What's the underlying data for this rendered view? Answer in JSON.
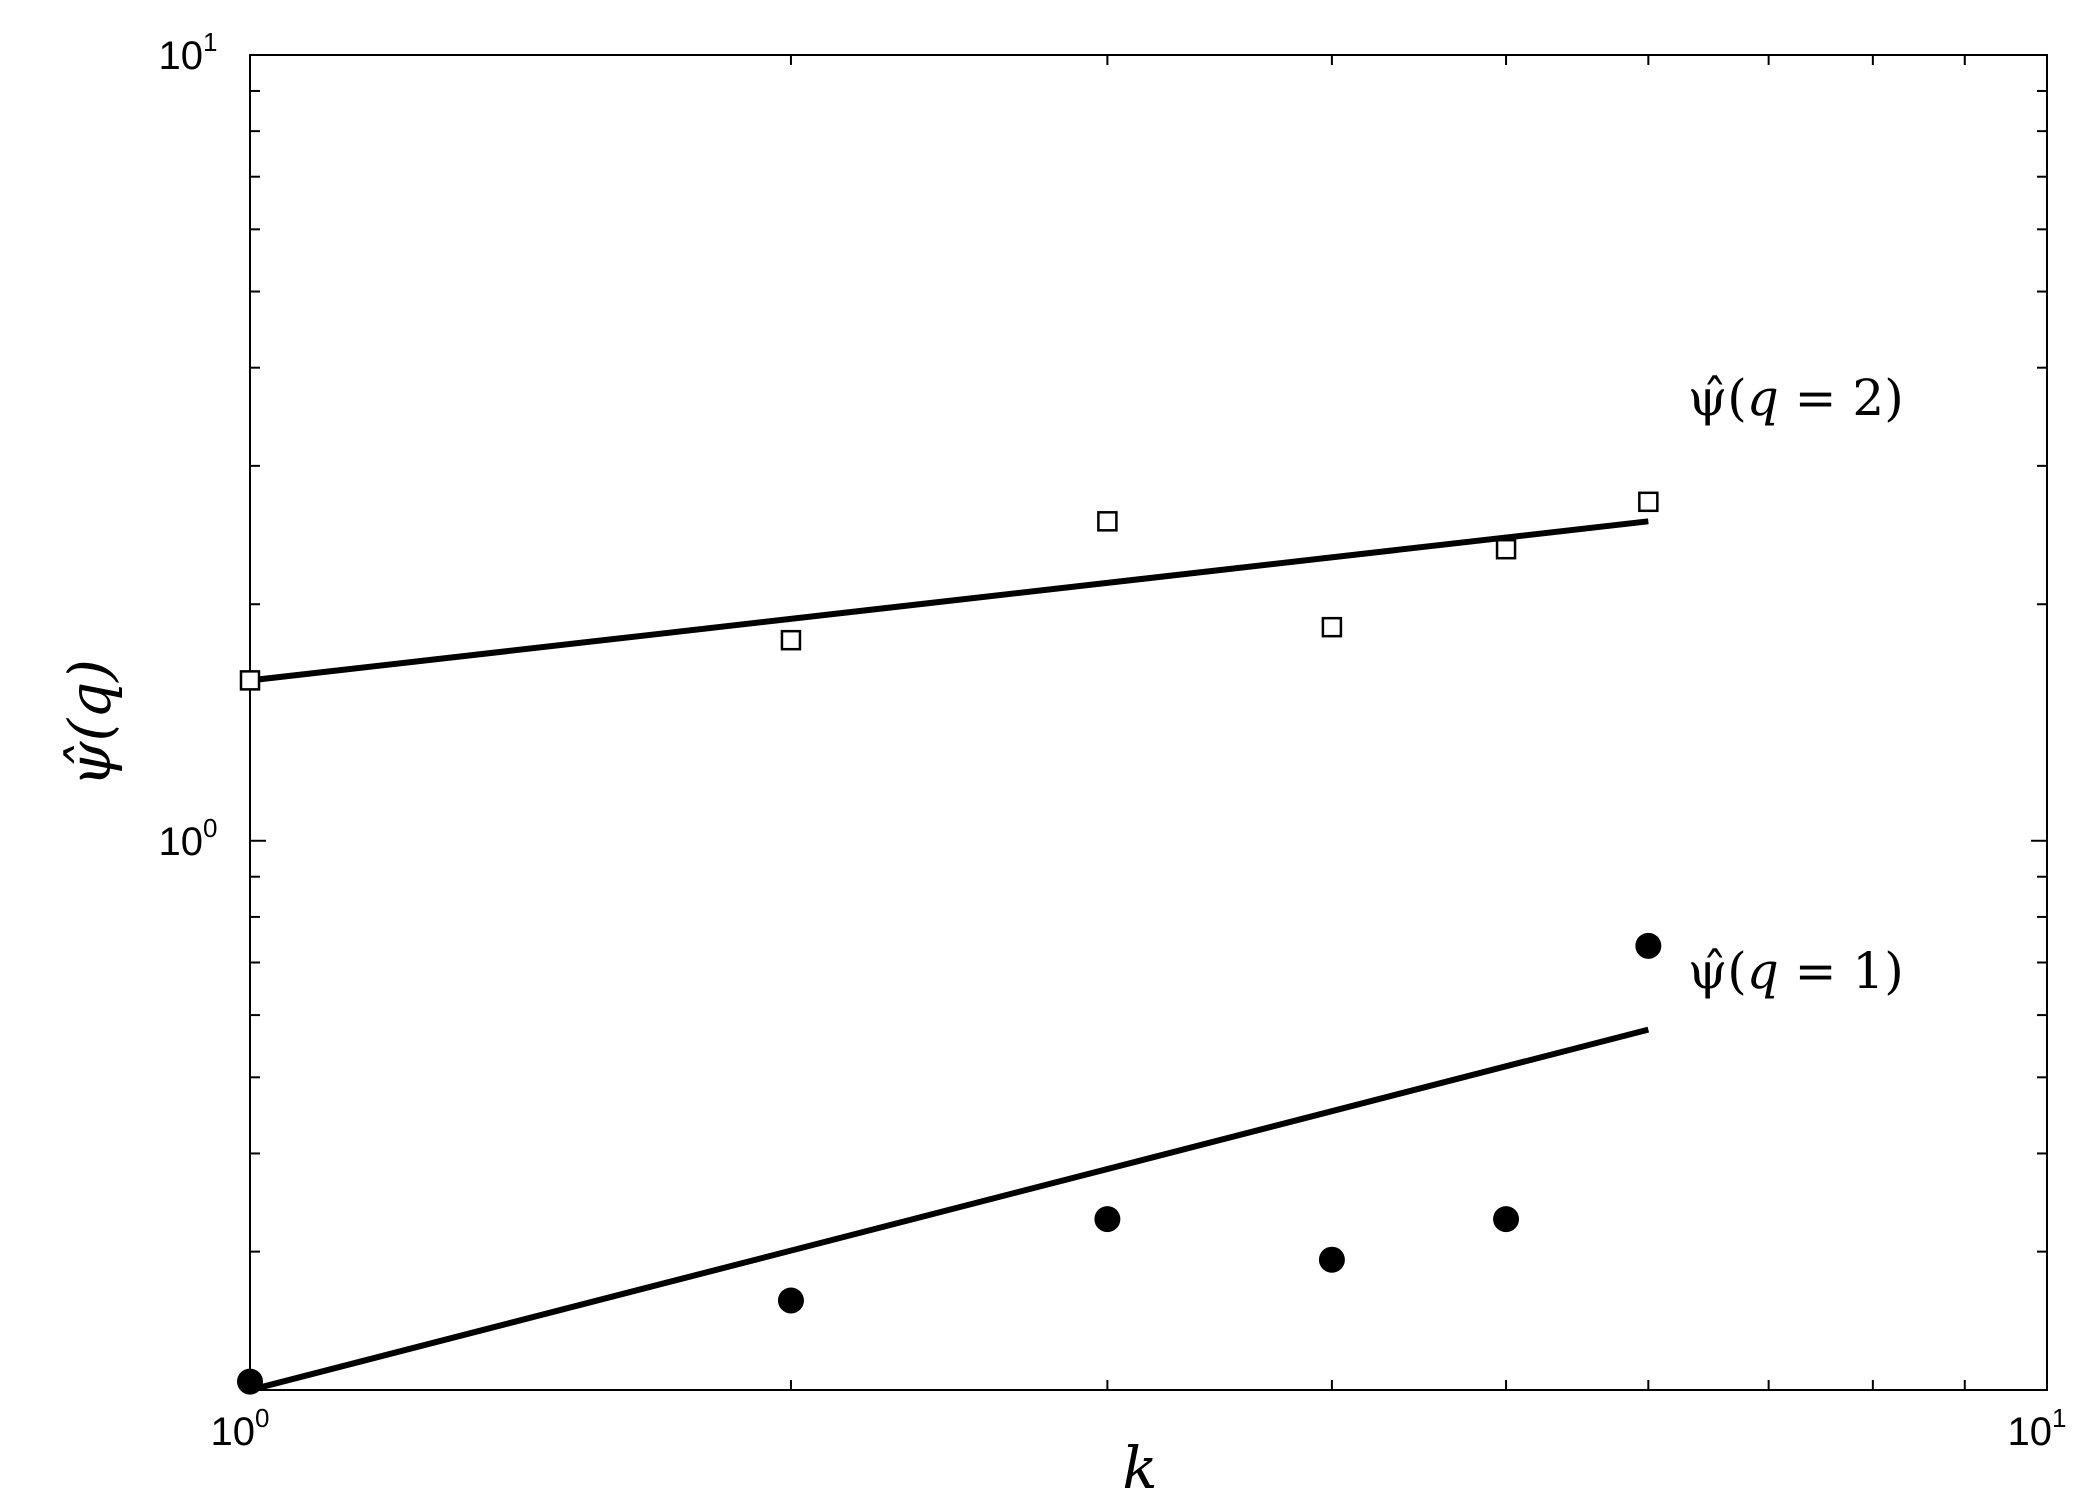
{
  "chart_data": {
    "type": "scatter",
    "xscale": "log",
    "yscale": "log",
    "xlim": [
      1,
      10
    ],
    "ylim": [
      0.2,
      10
    ],
    "xlabel": "k",
    "ylabel": "ψ̂(q)",
    "xticks": [
      {
        "value": 1,
        "base": "10",
        "exp": "0"
      },
      {
        "value": 10,
        "base": "10",
        "exp": "1"
      }
    ],
    "yticks": [
      {
        "value": 1,
        "base": "10",
        "exp": "0"
      },
      {
        "value": 10,
        "base": "10",
        "exp": "1"
      }
    ],
    "grid": false,
    "series": [
      {
        "name": "ψ̂(q = 2)",
        "marker": "open-square",
        "x": [
          1,
          2,
          3,
          4,
          5,
          6
        ],
        "y": [
          1.6,
          1.8,
          2.55,
          1.87,
          2.35,
          2.7
        ],
        "fit": {
          "x": [
            1,
            6
          ],
          "y": [
            1.6,
            2.55
          ]
        }
      },
      {
        "name": "ψ̂(q = 1)",
        "marker": "filled-circle",
        "x": [
          1,
          2,
          3,
          4,
          5,
          6
        ],
        "y": [
          0.205,
          0.26,
          0.33,
          0.293,
          0.33,
          0.735
        ],
        "fit": {
          "x": [
            1,
            6
          ],
          "y": [
            0.2,
            0.575
          ]
        }
      }
    ],
    "annotations": [
      {
        "text_pre": "ψ̂(",
        "text_var": "q",
        "text_post": " = 2)",
        "series": 0
      },
      {
        "text_pre": "ψ̂(",
        "text_var": "q",
        "text_post": " = 1)",
        "series": 1
      }
    ]
  }
}
